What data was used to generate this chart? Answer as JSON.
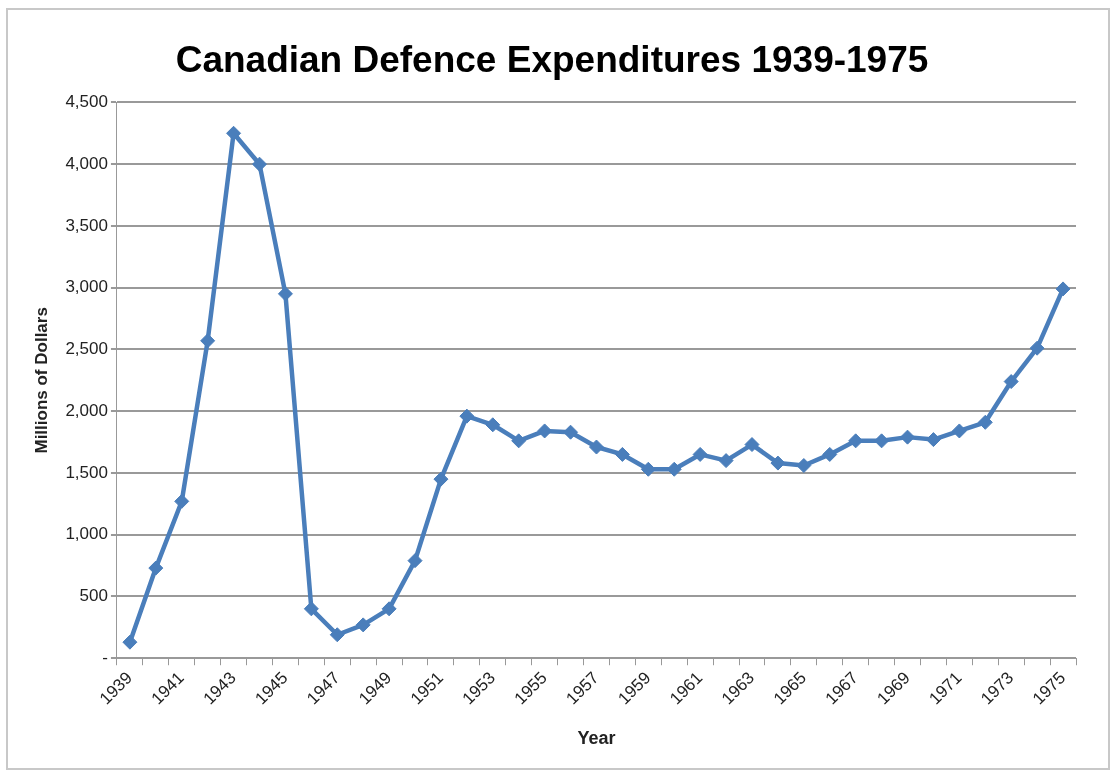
{
  "chart_data": {
    "type": "line",
    "title": "Canadian Defence Expenditures 1939-1975",
    "xlabel": "Year",
    "ylabel": "Millions of Dollars",
    "categories": [
      "1939",
      null,
      "1941",
      null,
      "1943",
      null,
      "1945",
      null,
      "1947",
      null,
      "1949",
      null,
      "1951",
      null,
      "1953",
      null,
      "1955",
      null,
      "1957",
      null,
      "1959",
      null,
      "1961",
      null,
      "1963",
      null,
      "1965",
      null,
      "1967",
      null,
      "1969",
      null,
      "1971",
      null,
      "1973",
      null,
      "1975"
    ],
    "series": [
      {
        "color": "#4a7ebb",
        "values": [
          130,
          730,
          1270,
          2570,
          4250,
          4000,
          2950,
          400,
          190,
          270,
          400,
          790,
          1450,
          1960,
          1890,
          1760,
          1840,
          1830,
          1710,
          1650,
          1530,
          1530,
          1650,
          1600,
          1730,
          1580,
          1560,
          1650,
          1760,
          1760,
          1790,
          1770,
          1840,
          1910,
          2240,
          2510,
          2990
        ]
      }
    ],
    "ylim": [
      0,
      4500
    ],
    "yticks": [
      {
        "value": 0,
        "label": "-"
      },
      500,
      {
        "value": 1000,
        "label": "1,000"
      },
      {
        "value": 1500,
        "label": "1,500"
      },
      {
        "value": 2000,
        "label": "2,000"
      },
      {
        "value": 2500,
        "label": "2,500"
      },
      {
        "value": 3000,
        "label": "3,000"
      },
      {
        "value": 3500,
        "label": "3,500"
      },
      {
        "value": 4000,
        "label": "4,000"
      },
      {
        "value": 4500,
        "label": "4,500"
      }
    ],
    "grid": "y",
    "legend": false,
    "marker": "diamond",
    "line_style": "solid"
  }
}
